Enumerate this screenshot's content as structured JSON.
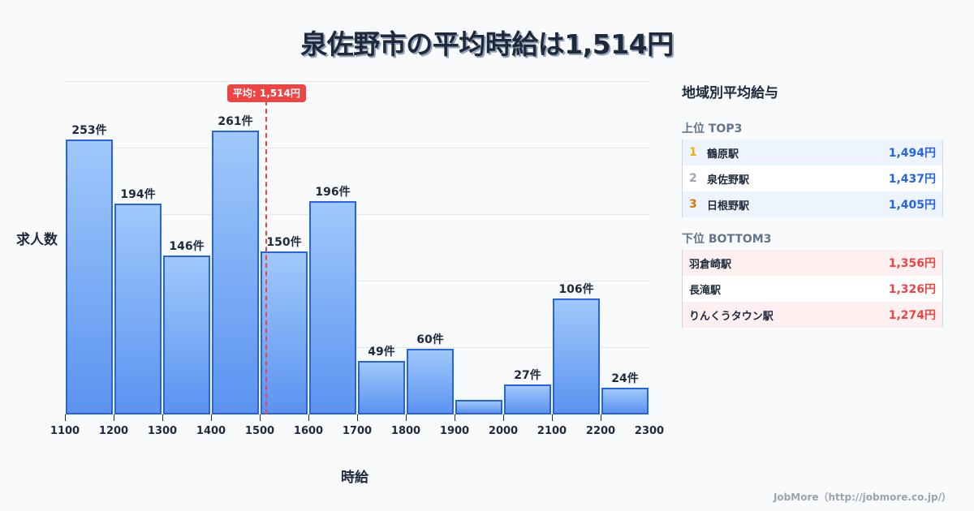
{
  "title": "泉佐野市の平均時給は1,514円",
  "chart_data": {
    "type": "bar",
    "title": "泉佐野市の平均時給は1,514円",
    "xlabel": "時給",
    "ylabel": "求人数",
    "bin_edges": [
      1100,
      1200,
      1300,
      1400,
      1500,
      1600,
      1700,
      1800,
      1900,
      2000,
      2100,
      2200,
      2300
    ],
    "categories": [
      "1100-1200",
      "1200-1300",
      "1300-1400",
      "1400-1500",
      "1500-1600",
      "1600-1700",
      "1700-1800",
      "1800-1900",
      "1900-2000",
      "2000-2100",
      "2100-2200",
      "2200-2300"
    ],
    "values": [
      253,
      194,
      146,
      261,
      150,
      196,
      49,
      60,
      13,
      27,
      106,
      24
    ],
    "value_labels": [
      "253件",
      "194件",
      "146件",
      "261件",
      "150件",
      "196件",
      "49件",
      "60件",
      "",
      "27件",
      "106件",
      "24件"
    ],
    "tick_labels": [
      "1100",
      "1200",
      "1300",
      "1400",
      "1500",
      "1600",
      "1700",
      "1800",
      "1900",
      "2000",
      "2100",
      "2200",
      "2300"
    ],
    "ylim": [
      0,
      307
    ],
    "grid": true,
    "annotation": {
      "label": "平均: 1,514円",
      "x": 1514
    },
    "colors": {
      "bar_fill_top": "#a0c8fb",
      "bar_fill_bottom": "#5b93f0",
      "bar_border": "#2563eb",
      "avg_line": "#ef4444"
    }
  },
  "panel": {
    "title": "地域別平均給与",
    "top": {
      "title": "上位 TOP3",
      "rows": [
        {
          "rank": "1",
          "name": "鶴原駅",
          "value": "1,494円",
          "rank_color": "#eab308"
        },
        {
          "rank": "2",
          "name": "泉佐野駅",
          "value": "1,437円",
          "rank_color": "#9ca3af"
        },
        {
          "rank": "3",
          "name": "日根野駅",
          "value": "1,405円",
          "rank_color": "#d97706"
        }
      ]
    },
    "bottom": {
      "title": "下位 BOTTOM3",
      "rows": [
        {
          "name": "羽倉崎駅",
          "value": "1,356円"
        },
        {
          "name": "長滝駅",
          "value": "1,326円"
        },
        {
          "name": "りんくうタウン駅",
          "value": "1,274円"
        }
      ]
    }
  },
  "footer": "JobMore（http://jobmore.co.jp/）"
}
